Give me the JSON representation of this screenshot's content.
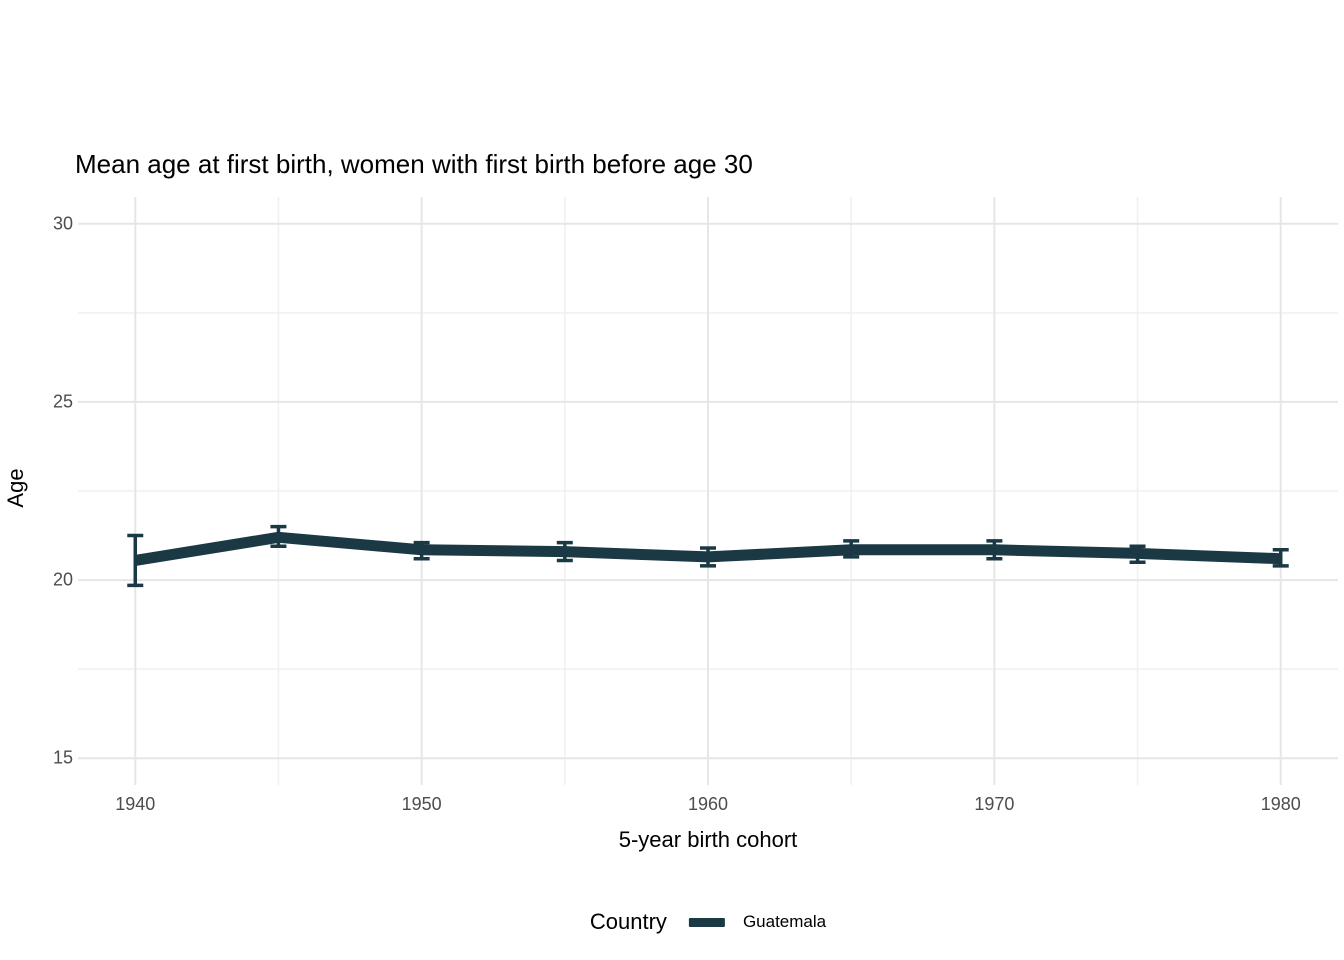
{
  "chart_data": {
    "type": "line",
    "title": "Mean age at first birth, women with first birth before age 30",
    "xlabel": "5-year birth cohort",
    "ylabel": "Age",
    "legend": {
      "title": "Country",
      "position": "bottom",
      "entries": [
        {
          "label": "Guatemala",
          "color": "#1b3944"
        }
      ]
    },
    "x": [
      1940,
      1945,
      1950,
      1955,
      1960,
      1965,
      1970,
      1975,
      1980
    ],
    "series": [
      {
        "name": "Guatemala",
        "color": "#1b3944",
        "values": [
          20.55,
          21.2,
          20.85,
          20.8,
          20.65,
          20.85,
          20.85,
          20.75,
          20.6
        ],
        "ci_low": [
          19.85,
          20.95,
          20.6,
          20.55,
          20.4,
          20.65,
          20.6,
          20.5,
          20.4
        ],
        "ci_high": [
          21.25,
          21.5,
          21.05,
          21.05,
          20.9,
          21.1,
          21.1,
          20.95,
          20.85
        ]
      }
    ],
    "xlim": [
      1938,
      1982
    ],
    "ylim": [
      14.25,
      30.75
    ],
    "x_ticks": [
      "1940",
      "1950",
      "1960",
      "1970",
      "1980"
    ],
    "x_tick_values": [
      1940,
      1950,
      1960,
      1970,
      1980
    ],
    "x_minor_values": [
      1945,
      1955,
      1965,
      1975
    ],
    "y_ticks": [
      "15",
      "20",
      "25",
      "30"
    ],
    "y_tick_values": [
      15,
      20,
      25,
      30
    ],
    "y_minor_values": [
      17.5,
      22.5,
      27.5
    ],
    "grid": true,
    "colors": {
      "grid_major": "#e6e6e6",
      "grid_minor": "#f0f0f0",
      "tick_text": "#4d4d4d",
      "background": "#ffffff"
    }
  }
}
